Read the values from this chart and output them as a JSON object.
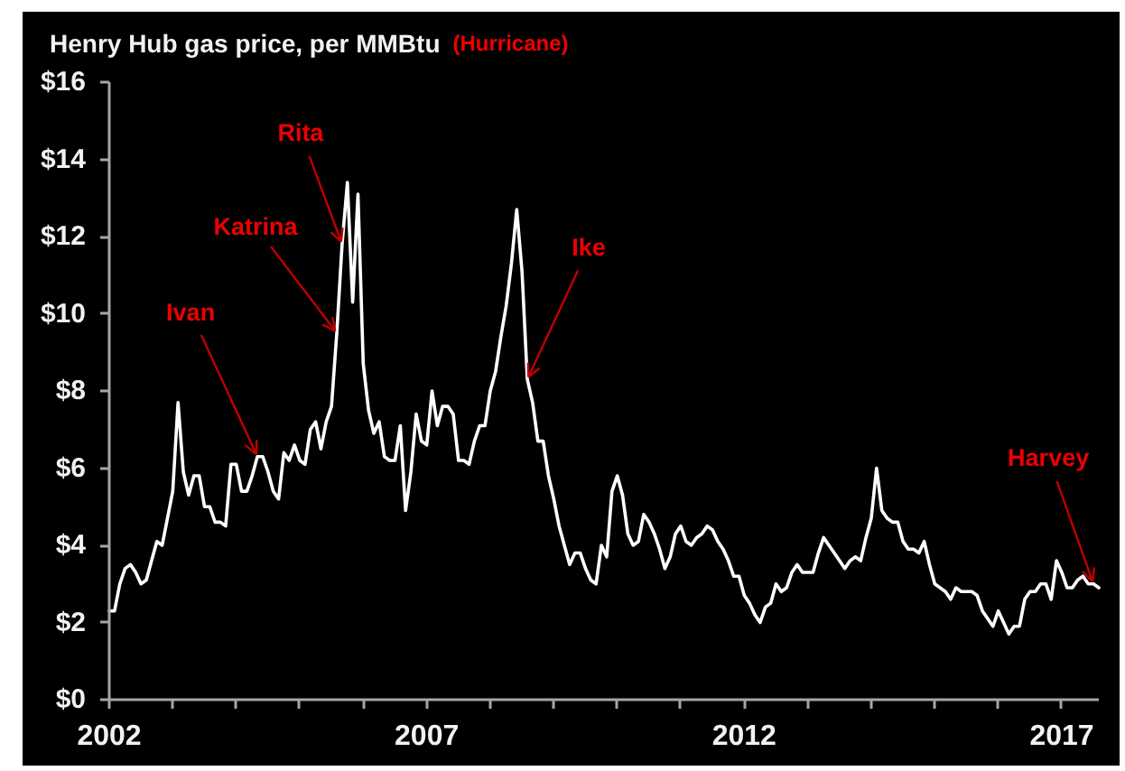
{
  "chart_data": {
    "type": "line",
    "title": "Henry Hub gas price, per MMBtu",
    "subtitle": "(Hurricane)",
    "x": [
      "2002-01",
      "2002-02",
      "2002-03",
      "2002-04",
      "2002-05",
      "2002-06",
      "2002-07",
      "2002-08",
      "2002-09",
      "2002-10",
      "2002-11",
      "2002-12",
      "2003-01",
      "2003-02",
      "2003-03",
      "2003-04",
      "2003-05",
      "2003-06",
      "2003-07",
      "2003-08",
      "2003-09",
      "2003-10",
      "2003-11",
      "2003-12",
      "2004-01",
      "2004-02",
      "2004-03",
      "2004-04",
      "2004-05",
      "2004-06",
      "2004-07",
      "2004-08",
      "2004-09",
      "2004-10",
      "2004-11",
      "2004-12",
      "2005-01",
      "2005-02",
      "2005-03",
      "2005-04",
      "2005-05",
      "2005-06",
      "2005-07",
      "2005-08",
      "2005-09",
      "2005-10",
      "2005-11",
      "2005-12",
      "2006-01",
      "2006-02",
      "2006-03",
      "2006-04",
      "2006-05",
      "2006-06",
      "2006-07",
      "2006-08",
      "2006-09",
      "2006-10",
      "2006-11",
      "2006-12",
      "2007-01",
      "2007-02",
      "2007-03",
      "2007-04",
      "2007-05",
      "2007-06",
      "2007-07",
      "2007-08",
      "2007-09",
      "2007-10",
      "2007-11",
      "2007-12",
      "2008-01",
      "2008-02",
      "2008-03",
      "2008-04",
      "2008-05",
      "2008-06",
      "2008-07",
      "2008-08",
      "2008-09",
      "2008-10",
      "2008-11",
      "2008-12",
      "2009-01",
      "2009-02",
      "2009-03",
      "2009-04",
      "2009-05",
      "2009-06",
      "2009-07",
      "2009-08",
      "2009-09",
      "2009-10",
      "2009-11",
      "2009-12",
      "2010-01",
      "2010-02",
      "2010-03",
      "2010-04",
      "2010-05",
      "2010-06",
      "2010-07",
      "2010-08",
      "2010-09",
      "2010-10",
      "2010-11",
      "2010-12",
      "2011-01",
      "2011-02",
      "2011-03",
      "2011-04",
      "2011-05",
      "2011-06",
      "2011-07",
      "2011-08",
      "2011-09",
      "2011-10",
      "2011-11",
      "2011-12",
      "2012-01",
      "2012-02",
      "2012-03",
      "2012-04",
      "2012-05",
      "2012-06",
      "2012-07",
      "2012-08",
      "2012-09",
      "2012-10",
      "2012-11",
      "2012-12",
      "2013-01",
      "2013-02",
      "2013-03",
      "2013-04",
      "2013-05",
      "2013-06",
      "2013-07",
      "2013-08",
      "2013-09",
      "2013-10",
      "2013-11",
      "2013-12",
      "2014-01",
      "2014-02",
      "2014-03",
      "2014-04",
      "2014-05",
      "2014-06",
      "2014-07",
      "2014-08",
      "2014-09",
      "2014-10",
      "2014-11",
      "2014-12",
      "2015-01",
      "2015-02",
      "2015-03",
      "2015-04",
      "2015-05",
      "2015-06",
      "2015-07",
      "2015-08",
      "2015-09",
      "2015-10",
      "2015-11",
      "2015-12",
      "2016-01",
      "2016-02",
      "2016-03",
      "2016-04",
      "2016-05",
      "2016-06",
      "2016-07",
      "2016-08",
      "2016-09",
      "2016-10",
      "2016-11",
      "2016-12",
      "2017-01",
      "2017-02",
      "2017-03",
      "2017-04",
      "2017-05",
      "2017-06",
      "2017-07",
      "2017-08"
    ],
    "series": [
      {
        "color": "#ffffff",
        "values": [
          2.3,
          2.3,
          3.0,
          3.4,
          3.5,
          3.3,
          3.0,
          3.1,
          3.6,
          4.1,
          4.0,
          4.7,
          5.4,
          7.7,
          5.9,
          5.3,
          5.8,
          5.8,
          5.0,
          5.0,
          4.6,
          4.6,
          4.5,
          6.1,
          6.1,
          5.4,
          5.4,
          5.8,
          6.3,
          6.3,
          5.9,
          5.4,
          5.2,
          6.4,
          6.2,
          6.6,
          6.2,
          6.1,
          7.0,
          7.2,
          6.5,
          7.2,
          7.6,
          9.5,
          11.8,
          13.4,
          10.3,
          13.1,
          8.7,
          7.5,
          6.9,
          7.2,
          6.3,
          6.2,
          6.2,
          7.1,
          4.9,
          5.9,
          7.4,
          6.7,
          6.6,
          8.0,
          7.1,
          7.6,
          7.6,
          7.4,
          6.2,
          6.2,
          6.1,
          6.7,
          7.1,
          7.1,
          8.0,
          8.5,
          9.4,
          10.2,
          11.3,
          12.7,
          11.1,
          8.3,
          7.7,
          6.7,
          6.7,
          5.8,
          5.2,
          4.5,
          4.0,
          3.5,
          3.8,
          3.8,
          3.4,
          3.1,
          3.0,
          4.0,
          3.7,
          5.4,
          5.8,
          5.3,
          4.3,
          4.0,
          4.1,
          4.8,
          4.6,
          4.3,
          3.9,
          3.4,
          3.7,
          4.3,
          4.5,
          4.1,
          4.0,
          4.2,
          4.3,
          4.5,
          4.4,
          4.1,
          3.9,
          3.6,
          3.2,
          3.2,
          2.7,
          2.5,
          2.2,
          2.0,
          2.4,
          2.5,
          3.0,
          2.8,
          2.9,
          3.3,
          3.5,
          3.3,
          3.3,
          3.3,
          3.8,
          4.2,
          4.0,
          3.8,
          3.6,
          3.4,
          3.6,
          3.7,
          3.6,
          4.2,
          4.7,
          6.0,
          4.9,
          4.7,
          4.6,
          4.6,
          4.1,
          3.9,
          3.9,
          3.8,
          4.1,
          3.5,
          3.0,
          2.9,
          2.8,
          2.6,
          2.9,
          2.8,
          2.8,
          2.8,
          2.7,
          2.3,
          2.1,
          1.9,
          2.3,
          2.0,
          1.7,
          1.9,
          1.9,
          2.6,
          2.8,
          2.8,
          3.0,
          3.0,
          2.6,
          3.6,
          3.3,
          2.9,
          2.9,
          3.1,
          3.2,
          3.0,
          3.0,
          2.9
        ]
      }
    ],
    "xlim": [
      "2002-01",
      "2017-08"
    ],
    "xticks": [
      {
        "value": "2002",
        "label": "2002"
      },
      {
        "value": "2003",
        "label": null
      },
      {
        "value": "2004",
        "label": null
      },
      {
        "value": "2005",
        "label": null
      },
      {
        "value": "2006",
        "label": null
      },
      {
        "value": "2007",
        "label": "2007"
      },
      {
        "value": "2008",
        "label": null
      },
      {
        "value": "2009",
        "label": null
      },
      {
        "value": "2010",
        "label": null
      },
      {
        "value": "2011",
        "label": null
      },
      {
        "value": "2012",
        "label": "2012"
      },
      {
        "value": "2013",
        "label": null
      },
      {
        "value": "2014",
        "label": null
      },
      {
        "value": "2015",
        "label": null
      },
      {
        "value": "2016",
        "label": null
      },
      {
        "value": "2017",
        "label": "2017"
      }
    ],
    "ylim": [
      0,
      16
    ],
    "yticks": [
      {
        "value": 0,
        "label": "$0"
      },
      {
        "value": 2,
        "label": "$2"
      },
      {
        "value": 4,
        "label": "$4"
      },
      {
        "value": 6,
        "label": "$6"
      },
      {
        "value": 8,
        "label": "$8"
      },
      {
        "value": 10,
        "label": "$10"
      },
      {
        "value": 12,
        "label": "$12"
      },
      {
        "value": 14,
        "label": "$14"
      },
      {
        "value": 16,
        "label": "$16"
      }
    ],
    "annotations": [
      {
        "text": "Ivan",
        "x": "2004-05",
        "y": 6.3
      },
      {
        "text": "Katrina",
        "x": "2005-08",
        "y": 9.5
      },
      {
        "text": "Rita",
        "x": "2005-09",
        "y": 11.8
      },
      {
        "text": "Ike",
        "x": "2008-08",
        "y": 8.3
      },
      {
        "text": "Harvey",
        "x": "2017-07",
        "y": 3.0
      }
    ],
    "grid": false
  }
}
